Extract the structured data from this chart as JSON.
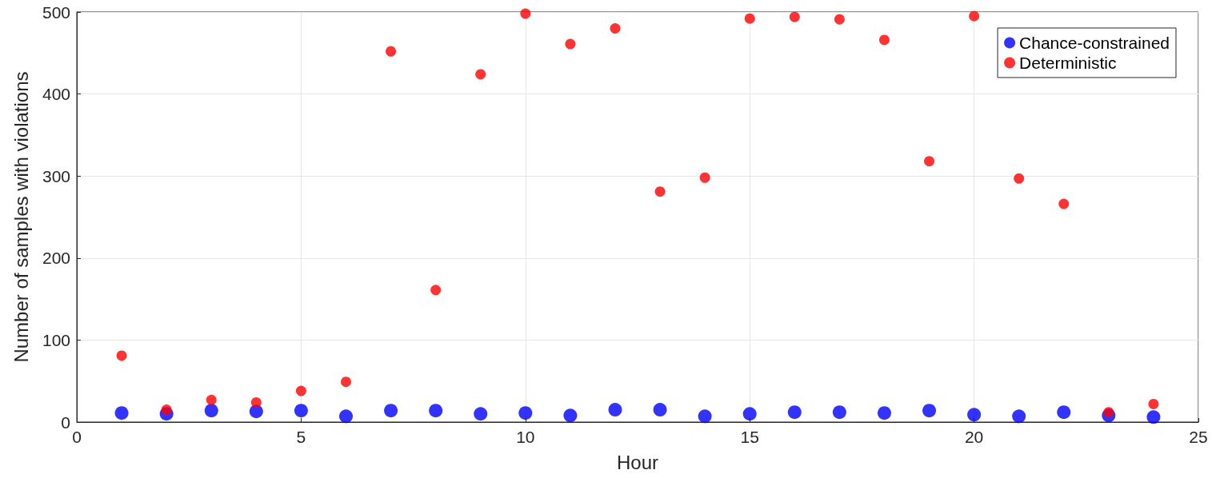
{
  "chart_data": {
    "type": "scatter",
    "xlabel": "Hour",
    "ylabel": "Number of samples with violations",
    "x": [
      1,
      2,
      3,
      4,
      5,
      6,
      7,
      8,
      9,
      10,
      11,
      12,
      13,
      14,
      15,
      16,
      17,
      18,
      19,
      20,
      21,
      22,
      23,
      24
    ],
    "series": [
      {
        "name": "Chance-constrained",
        "color": "#0000ff",
        "values": [
          11,
          10,
          14,
          13,
          14,
          7,
          14,
          14,
          10,
          11,
          8,
          15,
          15,
          7,
          10,
          12,
          12,
          11,
          14,
          9,
          7,
          12,
          8,
          6
        ]
      },
      {
        "name": "Deterministic",
        "color": "#ff0000",
        "values": [
          81,
          15,
          27,
          24,
          38,
          49,
          452,
          161,
          424,
          498,
          461,
          480,
          281,
          298,
          492,
          494,
          491,
          466,
          318,
          495,
          297,
          266,
          12,
          22
        ]
      }
    ],
    "xlim": [
      0,
      25
    ],
    "xticks": [
      0,
      5,
      10,
      15,
      20,
      25
    ],
    "ylim": [
      0,
      500
    ],
    "yticks": [
      0,
      100,
      200,
      300,
      400,
      500
    ],
    "grid": true,
    "legend": "top right",
    "marker": "circle"
  }
}
